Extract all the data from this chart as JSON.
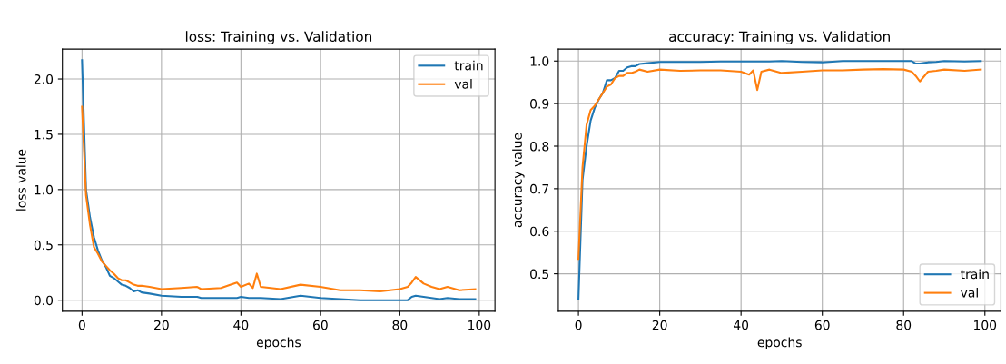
{
  "chart_data": [
    {
      "type": "line",
      "title": "loss: Training vs. Validation",
      "xlabel": "epochs",
      "ylabel": "loss value",
      "x": [
        0,
        1,
        2,
        3,
        4,
        5,
        6,
        7,
        8,
        9,
        10,
        11,
        12,
        13,
        14,
        15,
        17,
        20,
        25,
        29,
        30,
        35,
        39,
        40,
        42,
        43,
        44,
        45,
        50,
        55,
        60,
        65,
        70,
        75,
        80,
        82,
        83,
        84,
        86,
        88,
        90,
        92,
        95,
        99
      ],
      "series": [
        {
          "name": "train",
          "color": "#1f77b4",
          "values": [
            2.17,
            1.0,
            0.75,
            0.57,
            0.45,
            0.36,
            0.3,
            0.22,
            0.2,
            0.17,
            0.14,
            0.13,
            0.11,
            0.08,
            0.09,
            0.07,
            0.06,
            0.04,
            0.03,
            0.03,
            0.02,
            0.02,
            0.02,
            0.03,
            0.02,
            0.02,
            0.02,
            0.02,
            0.01,
            0.04,
            0.02,
            0.01,
            0.0,
            0.0,
            0.0,
            0.0,
            0.03,
            0.04,
            0.03,
            0.02,
            0.01,
            0.02,
            0.01,
            0.01
          ]
        },
        {
          "name": "val",
          "color": "#ff7f0e",
          "values": [
            1.75,
            0.95,
            0.68,
            0.48,
            0.42,
            0.35,
            0.31,
            0.27,
            0.24,
            0.2,
            0.18,
            0.18,
            0.16,
            0.14,
            0.13,
            0.13,
            0.12,
            0.1,
            0.11,
            0.12,
            0.1,
            0.11,
            0.16,
            0.12,
            0.15,
            0.11,
            0.24,
            0.12,
            0.1,
            0.14,
            0.12,
            0.09,
            0.09,
            0.08,
            0.1,
            0.12,
            0.16,
            0.21,
            0.15,
            0.12,
            0.1,
            0.12,
            0.09,
            0.1
          ]
        }
      ],
      "xlim": [
        -4.95,
        103.95
      ],
      "xticks": [
        0,
        20,
        40,
        60,
        80,
        100
      ],
      "ylim": [
        -0.1,
        2.27
      ],
      "yticks": [
        {
          "value": 0,
          "label": "0.0"
        },
        {
          "value": 0.5,
          "label": "0.5"
        },
        {
          "value": 1,
          "label": "1.0"
        },
        {
          "value": 1.5,
          "label": "1.5"
        },
        {
          "value": 2,
          "label": "2.0"
        }
      ],
      "grid": true,
      "legend": "top right",
      "marker": "none",
      "line_style": "solid"
    },
    {
      "type": "line",
      "title": "accuracy: Training vs. Validation",
      "xlabel": "epochs",
      "ylabel": "accuracy value",
      "x": [
        0,
        1,
        2,
        3,
        4,
        5,
        6,
        7,
        8,
        9,
        10,
        11,
        12,
        13,
        14,
        15,
        17,
        20,
        25,
        30,
        35,
        40,
        42,
        43,
        44,
        45,
        47,
        50,
        55,
        60,
        65,
        70,
        75,
        80,
        82,
        83,
        84,
        86,
        88,
        90,
        95,
        99
      ],
      "series": [
        {
          "name": "train",
          "color": "#1f77b4",
          "values": [
            0.44,
            0.72,
            0.8,
            0.86,
            0.89,
            0.91,
            0.925,
            0.955,
            0.955,
            0.96,
            0.977,
            0.977,
            0.985,
            0.988,
            0.988,
            0.993,
            0.995,
            0.998,
            0.998,
            0.998,
            0.999,
            0.999,
            0.999,
            0.999,
            0.999,
            0.999,
            0.999,
            1.0,
            0.998,
            0.997,
            1.0,
            1.0,
            1.0,
            1.0,
            1.0,
            0.994,
            0.994,
            0.997,
            0.998,
            1.0,
            0.999,
            1.0
          ]
        },
        {
          "name": "val",
          "color": "#ff7f0e",
          "values": [
            0.535,
            0.75,
            0.85,
            0.885,
            0.895,
            0.91,
            0.925,
            0.94,
            0.945,
            0.96,
            0.965,
            0.965,
            0.972,
            0.972,
            0.975,
            0.98,
            0.975,
            0.98,
            0.977,
            0.978,
            0.978,
            0.975,
            0.968,
            0.978,
            0.932,
            0.975,
            0.98,
            0.972,
            0.975,
            0.978,
            0.978,
            0.98,
            0.981,
            0.98,
            0.975,
            0.965,
            0.952,
            0.975,
            0.977,
            0.98,
            0.977,
            0.98
          ]
        }
      ],
      "xlim": [
        -4.95,
        103.95
      ],
      "xticks": [
        0,
        20,
        40,
        60,
        80,
        100
      ],
      "ylim": [
        0.412,
        1.028
      ],
      "yticks": [
        {
          "value": 0.5,
          "label": "0.5"
        },
        {
          "value": 0.6,
          "label": "0.6"
        },
        {
          "value": 0.7,
          "label": "0.7"
        },
        {
          "value": 0.8,
          "label": "0.8"
        },
        {
          "value": 0.9,
          "label": "0.9"
        },
        {
          "value": 1,
          "label": "1.0"
        }
      ],
      "grid": true,
      "legend": "lower right",
      "marker": "none",
      "line_style": "solid"
    }
  ]
}
